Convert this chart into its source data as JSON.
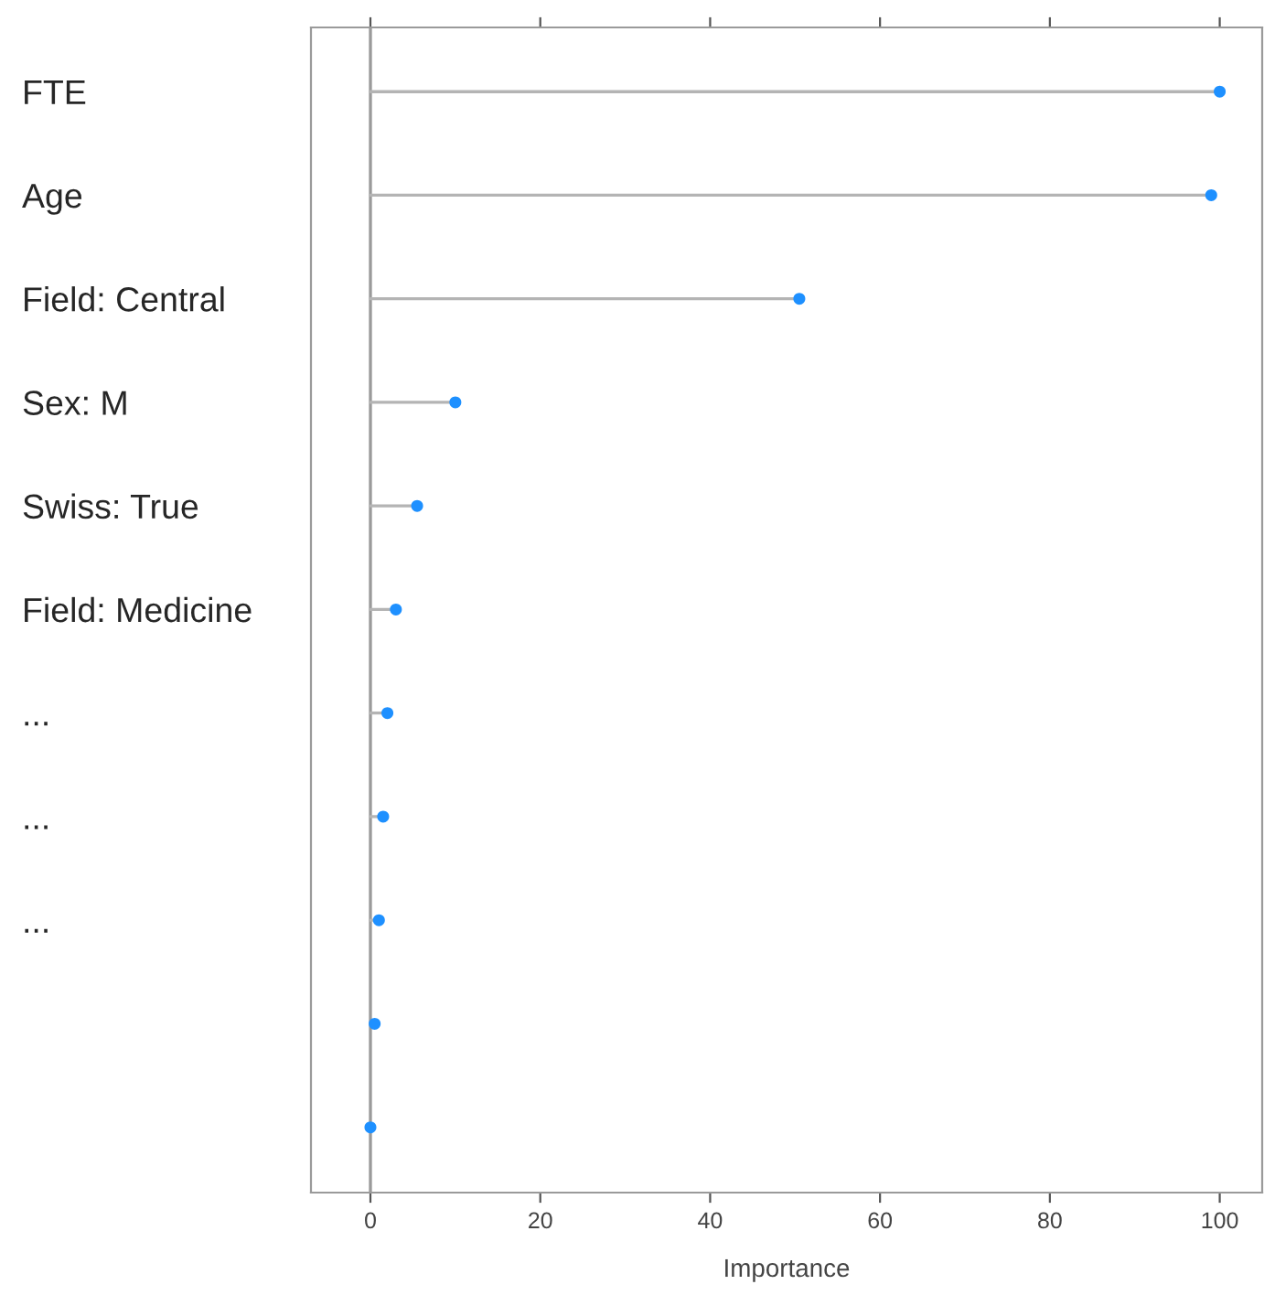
{
  "chart_data": {
    "type": "lollipop",
    "xlabel": "Importance",
    "categories": [
      "FTE",
      "Age",
      "Field: Central",
      "Sex: M",
      "Swiss: True",
      "Field: Medicine",
      "...",
      "...",
      "...",
      null,
      null
    ],
    "values": [
      100,
      99,
      50.5,
      10,
      5.5,
      3,
      2,
      1.5,
      1,
      0.5,
      0
    ],
    "color": "#1e90ff",
    "orientation": "horizontal",
    "xlim": [
      -7,
      105
    ],
    "xticks": [
      0,
      20,
      40,
      60,
      80,
      100
    ],
    "ref_lines": [
      {
        "axis": "x",
        "value": 0,
        "color": "#9a9a9a"
      }
    ],
    "legend": false,
    "marker": "circle"
  }
}
